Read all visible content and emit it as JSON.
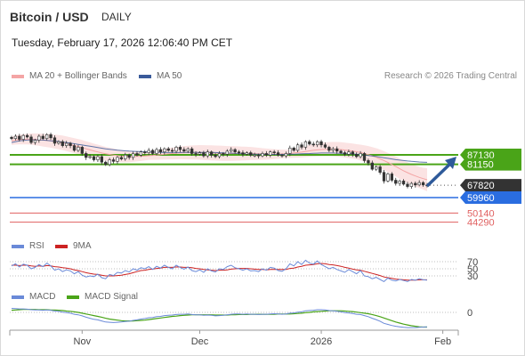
{
  "header": {
    "title": "Bitcoin / USD",
    "period": "DAILY",
    "datetime": "Tuesday, February 17, 2026 12:06:40 PM CET",
    "credit": "Research © 2026 Trading Central"
  },
  "legends": {
    "ma20": "MA 20 + Bollinger Bands",
    "ma50": "MA 50",
    "rsi": "RSI",
    "rsi_ma": "9MA",
    "macd": "MACD",
    "macd_signal": "MACD Signal"
  },
  "colors": {
    "ma20": "#f4a5a5",
    "ma50": "#3a5a9a",
    "band_fill": "#fbe3e3",
    "resistance": "#4aa418",
    "support": "#e06060",
    "pivot": "#2a6de0",
    "last_price": "#333333",
    "rsi": "#6a8ad8",
    "rsi_ma": "#cc2222",
    "macd": "#6a8ad8",
    "macd_signal": "#4aa418"
  },
  "chart_data": [
    {
      "type": "candlestick",
      "name": "price",
      "ylim": [
        40000,
        100000
      ],
      "x_ticks": [
        "Nov",
        "Dec",
        "2026",
        "Feb"
      ],
      "levels": {
        "resistance": [
          "87130",
          "81150"
        ],
        "last": "67820",
        "pivot": "59960",
        "support": [
          "50140",
          "44290"
        ]
      },
      "close": [
        97500,
        99000,
        97000,
        99500,
        98500,
        95000,
        96500,
        99000,
        97500,
        100000,
        98000,
        94500,
        95500,
        93000,
        94500,
        93000,
        90000,
        92000,
        88000,
        85500,
        86000,
        84000,
        86000,
        82500,
        81000,
        84000,
        83000,
        85500,
        84500,
        87000,
        85500,
        88000,
        87000,
        89000,
        88500,
        90000,
        88000,
        90500,
        89000,
        91000,
        90000,
        89500,
        92000,
        90500,
        89500,
        91000,
        88000,
        87500,
        88500,
        86500,
        89000,
        87000,
        86000,
        88000,
        87500,
        89500,
        90500,
        89000,
        88500,
        87500,
        88500,
        87000,
        87000,
        86500,
        88000,
        87000,
        89000,
        88500,
        87000,
        86500,
        88000,
        91500,
        90000,
        93500,
        92000,
        95500,
        94000,
        93500,
        95500,
        93500,
        92000,
        90000,
        91000,
        89500,
        88500,
        87500,
        89000,
        87500,
        86000,
        88000,
        83500,
        82000,
        78000,
        79500,
        76000,
        70500,
        75000,
        71000,
        69000,
        70500,
        68500,
        67000,
        69000,
        68000,
        69500,
        68000,
        67820
      ],
      "ma20": [
        96000,
        96500,
        96800,
        97000,
        97100,
        97200,
        97000,
        96800,
        96500,
        96300,
        96000,
        95600,
        95200,
        94800,
        94200,
        93600,
        93000,
        92400,
        91800,
        91000,
        90300,
        89600,
        89000,
        88400,
        87800,
        87400,
        87000,
        86600,
        86300,
        86100,
        86000,
        86000,
        86100,
        86200,
        86400,
        86600,
        86800,
        87000,
        87300,
        87600,
        87800,
        88000,
        88200,
        88400,
        88500,
        88600,
        88700,
        88700,
        88700,
        88600,
        88500,
        88400,
        88300,
        88200,
        88100,
        88000,
        88000,
        88000,
        88000,
        88000,
        88000,
        88000,
        87900,
        87800,
        87700,
        87600,
        87600,
        87600,
        87600,
        87700,
        87800,
        88000,
        88300,
        88600,
        88900,
        89300,
        89700,
        90000,
        90300,
        90500,
        90700,
        90800,
        90800,
        90700,
        90500,
        90200,
        89900,
        89500,
        89100,
        88600,
        88000,
        87300,
        86500,
        85600,
        84600,
        83500,
        82300,
        81000,
        79700,
        78300,
        77000,
        75800,
        74700,
        73700,
        72800,
        72000,
        71300
      ],
      "ma50": [
        95000,
        95500,
        96000,
        96300,
        96500,
        96700,
        96700,
        96600,
        96500,
        96300,
        96100,
        95900,
        95600,
        95300,
        95000,
        94600,
        94200,
        93800,
        93400,
        93000,
        92600,
        92200,
        91800,
        91400,
        91000,
        90700,
        90400,
        90100,
        89900,
        89700,
        89500,
        89400,
        89300,
        89200,
        89100,
        89000,
        88900,
        88800,
        88700,
        88600,
        88600,
        88600,
        88600,
        88600,
        88700,
        88700,
        88700,
        88700,
        88700,
        88700,
        88700,
        88700,
        88600,
        88500,
        88400,
        88300,
        88200,
        88100,
        88000,
        87900,
        87800,
        87700,
        87600,
        87500,
        87500,
        87400,
        87400,
        87400,
        87400,
        87400,
        87400,
        87500,
        87600,
        87700,
        87800,
        87900,
        88000,
        88100,
        88200,
        88300,
        88300,
        88300,
        88300,
        88200,
        88100,
        88000,
        87900,
        87700,
        87500,
        87300,
        87000,
        86700,
        86400,
        86100,
        85700,
        85300,
        84900,
        84500,
        84100,
        83800,
        83500,
        83200,
        83000,
        82800,
        82600,
        82500,
        82400
      ]
    },
    {
      "type": "line",
      "name": "rsi_panel",
      "ylim": [
        0,
        100
      ],
      "y_ticks": [
        "70",
        "50",
        "30"
      ],
      "rsi": [
        58,
        64,
        55,
        63,
        60,
        50,
        54,
        62,
        56,
        66,
        58,
        46,
        50,
        42,
        47,
        44,
        36,
        42,
        32,
        27,
        30,
        28,
        35,
        25,
        22,
        34,
        31,
        40,
        38,
        45,
        41,
        50,
        46,
        53,
        50,
        56,
        48,
        57,
        52,
        60,
        54,
        50,
        60,
        54,
        49,
        55,
        45,
        42,
        47,
        40,
        50,
        44,
        41,
        50,
        48,
        56,
        60,
        53,
        50,
        46,
        50,
        44,
        45,
        42,
        50,
        46,
        54,
        52,
        45,
        43,
        50,
        64,
        58,
        70,
        62,
        74,
        66,
        63,
        72,
        62,
        56,
        50,
        54,
        48,
        44,
        40,
        48,
        42,
        36,
        45,
        30,
        28,
        22,
        26,
        20,
        14,
        24,
        18,
        16,
        20,
        17,
        14,
        20,
        18,
        22,
        19,
        18
      ],
      "rsi_ma": [
        60,
        60,
        59,
        60,
        60,
        58,
        57,
        58,
        57,
        59,
        58,
        56,
        55,
        53,
        52,
        50,
        47,
        45,
        42,
        39,
        37,
        35,
        34,
        32,
        30,
        30,
        30,
        31,
        32,
        34,
        36,
        39,
        42,
        45,
        46,
        48,
        49,
        51,
        52,
        54,
        54,
        54,
        55,
        55,
        54,
        54,
        53,
        51,
        50,
        48,
        47,
        46,
        45,
        46,
        46,
        47,
        49,
        50,
        51,
        51,
        51,
        50,
        49,
        48,
        48,
        47,
        48,
        48,
        48,
        48,
        48,
        51,
        52,
        55,
        57,
        60,
        61,
        62,
        64,
        65,
        64,
        62,
        61,
        59,
        57,
        54,
        52,
        49,
        47,
        46,
        43,
        40,
        37,
        34,
        31,
        27,
        25,
        23,
        21,
        20,
        19,
        18,
        18,
        18,
        19,
        19,
        19
      ]
    },
    {
      "type": "line",
      "name": "macd_panel",
      "ylim": [
        -6000,
        4000
      ],
      "y_ticks": [
        "0"
      ],
      "macd": [
        1500,
        1400,
        1300,
        1300,
        1200,
        1000,
        900,
        900,
        800,
        900,
        800,
        500,
        400,
        100,
        -100,
        -300,
        -700,
        -900,
        -1300,
        -1800,
        -2200,
        -2600,
        -2800,
        -3200,
        -3600,
        -3700,
        -3800,
        -3700,
        -3600,
        -3400,
        -3300,
        -3000,
        -2800,
        -2500,
        -2300,
        -2000,
        -1900,
        -1600,
        -1500,
        -1200,
        -1100,
        -1000,
        -800,
        -700,
        -700,
        -600,
        -800,
        -900,
        -900,
        -1100,
        -1000,
        -1100,
        -1300,
        -1200,
        -1100,
        -900,
        -700,
        -600,
        -600,
        -700,
        -600,
        -700,
        -700,
        -800,
        -700,
        -700,
        -600,
        -500,
        -600,
        -700,
        -600,
        -300,
        -200,
        100,
        200,
        600,
        700,
        800,
        1000,
        1000,
        900,
        700,
        600,
        400,
        200,
        -100,
        -200,
        -400,
        -700,
        -800,
        -1200,
        -1600,
        -2200,
        -2700,
        -3300,
        -4100,
        -4500,
        -4900,
        -5200,
        -5400,
        -5600,
        -5700,
        -5700,
        -5700,
        -5600,
        -5500,
        -5400
      ],
      "macd_signal": [
        800,
        900,
        1000,
        1100,
        1100,
        1100,
        1100,
        1000,
        1000,
        1000,
        900,
        900,
        800,
        700,
        500,
        400,
        200,
        0,
        -300,
        -600,
        -900,
        -1200,
        -1500,
        -1800,
        -2200,
        -2500,
        -2700,
        -2900,
        -3100,
        -3200,
        -3200,
        -3200,
        -3100,
        -3000,
        -2900,
        -2700,
        -2500,
        -2300,
        -2100,
        -1900,
        -1700,
        -1500,
        -1400,
        -1200,
        -1100,
        -1000,
        -900,
        -900,
        -900,
        -900,
        -900,
        -900,
        -1000,
        -1000,
        -1000,
        -1000,
        -900,
        -900,
        -800,
        -800,
        -800,
        -700,
        -700,
        -700,
        -700,
        -700,
        -700,
        -700,
        -600,
        -600,
        -600,
        -600,
        -500,
        -400,
        -300,
        -100,
        0,
        200,
        300,
        400,
        500,
        600,
        600,
        600,
        600,
        500,
        400,
        300,
        100,
        -100,
        -300,
        -500,
        -800,
        -1200,
        -1600,
        -2100,
        -2600,
        -3100,
        -3600,
        -4000,
        -4400,
        -4700,
        -5000,
        -5200,
        -5400,
        -5500,
        -5500
      ]
    }
  ]
}
